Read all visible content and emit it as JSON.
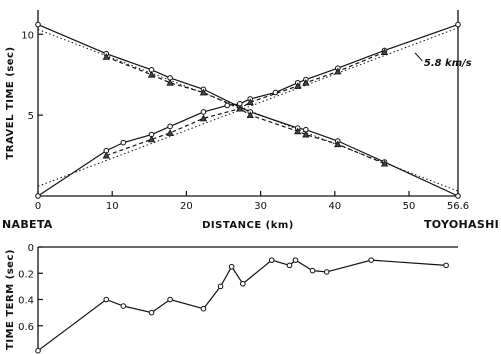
{
  "chart_data": [
    {
      "type": "line",
      "xlabel": "DISTANCE (km)",
      "ylabel": "TRAVEL TIME (sec)",
      "xlim": [
        0,
        56.6
      ],
      "ylim": [
        0,
        11.5
      ],
      "x_ticks": [
        0,
        10,
        20,
        30,
        40,
        50,
        56.6
      ],
      "y_ticks": [
        5,
        10
      ],
      "end_labels": {
        "left": "NABETA",
        "right": "TOYOHASHI"
      },
      "annotation": "5.8 km/s",
      "series": [
        {
          "marker": "circle",
          "style": "solid",
          "x": [
            0,
            9.2,
            15.3,
            17.8,
            22.3,
            27.2,
            28.6,
            35.0,
            36.1,
            40.4,
            46.7,
            56.6
          ],
          "y": [
            10.6,
            8.8,
            7.8,
            7.3,
            6.6,
            5.5,
            5.2,
            4.2,
            4.1,
            3.4,
            2.1,
            0
          ]
        },
        {
          "marker": "triangle",
          "style": "dashed",
          "x": [
            9.2,
            15.3,
            17.8,
            22.3,
            27.2,
            28.6,
            35.0,
            36.1,
            40.4,
            46.7
          ],
          "y": [
            8.6,
            7.5,
            7.0,
            6.4,
            5.4,
            5.0,
            4.0,
            3.8,
            3.2,
            2.0
          ]
        },
        {
          "marker": "circle",
          "style": "solid",
          "x": [
            0,
            9.2,
            11.5,
            15.3,
            17.8,
            22.3,
            25.5,
            27.2,
            28.6,
            32.0,
            35.0,
            36.1,
            40.4,
            46.7,
            56.6
          ],
          "y": [
            0,
            2.8,
            3.3,
            3.8,
            4.3,
            5.2,
            5.6,
            5.7,
            6.0,
            6.4,
            7.0,
            7.2,
            7.9,
            9.0,
            10.6
          ]
        },
        {
          "marker": "triangle",
          "style": "dashed",
          "x": [
            9.2,
            15.3,
            17.8,
            22.3,
            27.2,
            28.6,
            35.0,
            36.1,
            40.4,
            46.7
          ],
          "y": [
            2.5,
            3.5,
            3.9,
            4.8,
            5.4,
            5.8,
            6.8,
            7.0,
            7.7,
            8.9
          ]
        }
      ],
      "fit_lines": [
        {
          "style": "dotted",
          "x": [
            0,
            56.6
          ],
          "y": [
            10.3,
            0.3
          ]
        },
        {
          "style": "dotted",
          "x": [
            0,
            56.6
          ],
          "y": [
            0.6,
            10.4
          ]
        }
      ]
    },
    {
      "type": "line",
      "ylabel": "TIME TERM (sec)",
      "xlim": [
        0,
        56.6
      ],
      "ylim": [
        0.8,
        0
      ],
      "y_ticks": [
        0,
        0.2,
        0.4,
        0.6
      ],
      "y_tick_labels": [
        "0",
        "0.2",
        "0.4",
        "0.6"
      ],
      "series": [
        {
          "marker": "circle",
          "style": "solid",
          "x": [
            0,
            9.2,
            11.5,
            15.3,
            17.8,
            22.3,
            24.6,
            26.1,
            27.6,
            31.5,
            33.9,
            34.7,
            37.0,
            38.9,
            44.9,
            55.0
          ],
          "y": [
            0.79,
            0.4,
            0.45,
            0.5,
            0.4,
            0.47,
            0.3,
            0.15,
            0.28,
            0.1,
            0.14,
            0.1,
            0.18,
            0.19,
            0.1,
            0.14
          ]
        }
      ]
    }
  ]
}
